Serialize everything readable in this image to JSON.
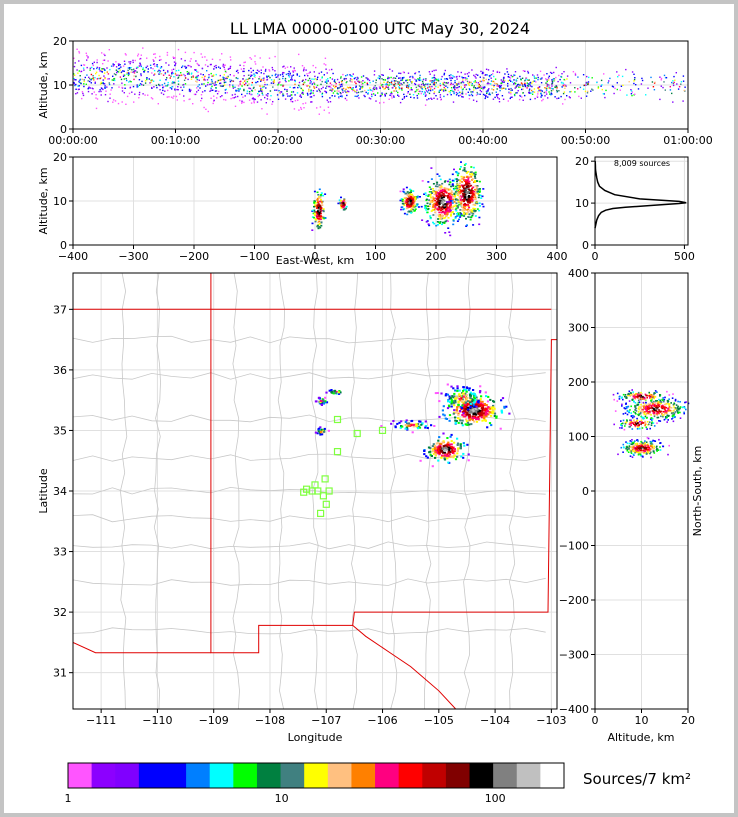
{
  "title": "LL LMA 0000-0100 UTC May 30, 2024",
  "time_panel": {
    "ylabel": "Altitude, km",
    "yticks": [
      "0",
      "10",
      "20"
    ],
    "xticks": [
      "00:00:00",
      "00:10:00",
      "00:20:00",
      "00:30:00",
      "00:40:00",
      "00:50:00",
      "01:00:00"
    ]
  },
  "ew_panel": {
    "ylabel": "Altitude, km",
    "xlabel": "East-West, km",
    "yticks": [
      "0",
      "10",
      "20"
    ],
    "xticks": [
      "−400",
      "−300",
      "−200",
      "−100",
      "0",
      "100",
      "200",
      "300",
      "400"
    ]
  },
  "hist_panel": {
    "annotation": "8,009 sources",
    "xticks": [
      "0",
      "500"
    ],
    "yticks": [
      "0",
      "10",
      "20"
    ]
  },
  "map_panel": {
    "xlabel": "Longitude",
    "ylabel": "Latitude",
    "xticks": [
      "−111",
      "−110",
      "−109",
      "−108",
      "−107",
      "−106",
      "−105",
      "−104",
      "−103"
    ],
    "yticks": [
      "31",
      "32",
      "33",
      "34",
      "35",
      "36",
      "37"
    ]
  },
  "ns_panel": {
    "xlabel": "Altitude, km",
    "ylabel": "North-South, km",
    "xticks": [
      "0",
      "10",
      "20"
    ],
    "yticks": [
      "−400",
      "−300",
      "−200",
      "−100",
      "0",
      "100",
      "200",
      "300",
      "400"
    ]
  },
  "colorbar": {
    "unit_label": "Sources/7 km²",
    "ticks": [
      "1",
      "10",
      "100"
    ],
    "colors": [
      "#ff55ff",
      "#8c00ff",
      "#8000ff",
      "#0000ff",
      "#0000ff",
      "#007fff",
      "#00ffff",
      "#00ff00",
      "#008040",
      "#408080",
      "#ffff00",
      "#ffc080",
      "#ff8000",
      "#ff0080",
      "#ff0000",
      "#c00000",
      "#800000",
      "#000000",
      "#808080",
      "#c0c0c0",
      "#ffffff"
    ]
  },
  "chart_data": [
    {
      "type": "scatter",
      "title": "LL LMA 0000-0100 UTC May 30, 2024",
      "xlabel": "",
      "ylabel": "Altitude, km",
      "xlim": [
        "00:00:00",
        "01:00:00"
      ],
      "ylim": [
        0,
        20
      ],
      "grid": true,
      "series": [
        {
          "x": [
            "00:00:00",
            "00:05:00",
            "00:10:00",
            "00:15:00",
            "00:20:00",
            "00:25:00",
            "00:30:00",
            "00:35:00",
            "00:40:00",
            "00:45:00",
            "00:50:00",
            "00:55:00",
            "01:00:00"
          ],
          "y": [
            12,
            12,
            12,
            11,
            10,
            10,
            10,
            10,
            10,
            10,
            10,
            10,
            10
          ]
        }
      ]
    },
    {
      "type": "heatmap",
      "xlabel": "East-West, km",
      "ylabel": "Altitude, km",
      "xlim": [
        -400,
        400
      ],
      "ylim": [
        0,
        20
      ],
      "clusters": [
        {
          "x": 5,
          "y": 8
        },
        {
          "x": 45,
          "y": 9.5
        },
        {
          "x": 155,
          "y": 10
        },
        {
          "x": 210,
          "y": 10
        },
        {
          "x": 250,
          "y": 12
        }
      ]
    },
    {
      "type": "line",
      "annotation": "8,009 sources",
      "xlim": [
        0,
        520
      ],
      "ylim": [
        0,
        21
      ],
      "x": [
        0,
        5,
        10,
        20,
        35,
        60,
        100,
        170,
        330,
        470,
        510,
        470,
        250,
        110,
        55,
        25,
        15,
        10,
        6,
        3,
        2,
        1
      ],
      "y": [
        4,
        5,
        6,
        7,
        7.8,
        8.3,
        8.7,
        9.0,
        9.5,
        9.9,
        10.1,
        10.4,
        11.0,
        12.0,
        13.0,
        14.0,
        15.0,
        16.0,
        17.0,
        18.0,
        19.0,
        20.0
      ]
    },
    {
      "type": "heatmap",
      "xlabel": "Longitude",
      "ylabel": "Latitude",
      "xlim": [
        -111.5,
        -102.9
      ],
      "ylim": [
        30.4,
        37.6
      ],
      "clusters": [
        {
          "x": -104.4,
          "y": 35.35
        },
        {
          "x": -104.6,
          "y": 35.55
        },
        {
          "x": -104.9,
          "y": 34.7
        },
        {
          "x": -105.5,
          "y": 35.1
        },
        {
          "x": -107.1,
          "y": 35.5
        },
        {
          "x": -107.1,
          "y": 35.0
        },
        {
          "x": -106.85,
          "y": 35.65
        }
      ],
      "stations": [
        {
          "x": -106.8,
          "y": 35.18
        },
        {
          "x": -106.45,
          "y": 34.95
        },
        {
          "x": -106.0,
          "y": 35.0
        },
        {
          "x": -106.8,
          "y": 34.65
        },
        {
          "x": -107.02,
          "y": 34.2
        },
        {
          "x": -107.2,
          "y": 34.1
        },
        {
          "x": -107.35,
          "y": 34.03
        },
        {
          "x": -107.4,
          "y": 33.98
        },
        {
          "x": -107.15,
          "y": 34.0
        },
        {
          "x": -106.95,
          "y": 34.0
        },
        {
          "x": -107.05,
          "y": 33.92
        },
        {
          "x": -107.0,
          "y": 33.78
        },
        {
          "x": -107.1,
          "y": 33.63
        },
        {
          "x": -107.25,
          "y": 34.0
        }
      ]
    },
    {
      "type": "heatmap",
      "xlabel": "Altitude, km",
      "ylabel": "North-South, km",
      "xlim": [
        0,
        20
      ],
      "ylim": [
        -400,
        400
      ],
      "clusters": [
        {
          "x": 10,
          "y": 80
        },
        {
          "x": 9,
          "y": 125
        },
        {
          "x": 13,
          "y": 152
        },
        {
          "x": 10,
          "y": 175
        }
      ]
    }
  ]
}
